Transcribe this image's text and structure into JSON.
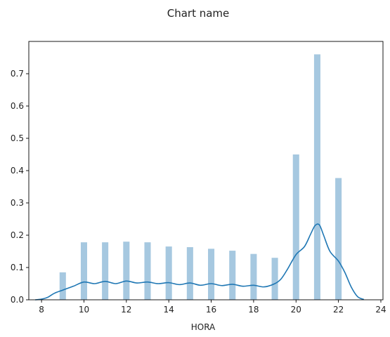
{
  "chart_data": {
    "type": "bar",
    "title": "Chart name",
    "xlabel": "HORA",
    "ylabel": "",
    "xlim": [
      7.4,
      24.1
    ],
    "ylim": [
      0,
      0.8
    ],
    "x_ticks": [
      8,
      10,
      12,
      14,
      16,
      18,
      20,
      22,
      24
    ],
    "y_ticks": [
      0.0,
      0.1,
      0.2,
      0.3,
      0.4,
      0.5,
      0.6,
      0.7
    ],
    "grid": false,
    "legend": "none",
    "bar_color": "#a6c8e0",
    "line_color": "#1f77b4",
    "bar_width": 0.3,
    "histogram": {
      "x": [
        9,
        10,
        11,
        12,
        13,
        14,
        15,
        16,
        17,
        18,
        19,
        20,
        21,
        22
      ],
      "values": [
        0.085,
        0.178,
        0.178,
        0.18,
        0.178,
        0.165,
        0.163,
        0.158,
        0.152,
        0.142,
        0.13,
        0.45,
        0.76,
        0.377
      ]
    },
    "kde": {
      "x": [
        7.7,
        8.0,
        8.3,
        8.6,
        9.0,
        9.5,
        10.0,
        10.5,
        11.0,
        11.5,
        12.0,
        12.5,
        13.0,
        13.5,
        14.0,
        14.5,
        15.0,
        15.5,
        16.0,
        16.5,
        17.0,
        17.5,
        18.0,
        18.5,
        19.0,
        19.3,
        19.6,
        20.0,
        20.4,
        20.7,
        20.9,
        21.1,
        21.3,
        21.6,
        22.0,
        22.3,
        22.6,
        22.9,
        23.2
      ],
      "values": [
        0.0,
        0.002,
        0.008,
        0.02,
        0.03,
        0.042,
        0.055,
        0.05,
        0.057,
        0.05,
        0.058,
        0.052,
        0.055,
        0.05,
        0.053,
        0.047,
        0.052,
        0.045,
        0.05,
        0.044,
        0.048,
        0.042,
        0.045,
        0.04,
        0.05,
        0.065,
        0.095,
        0.14,
        0.165,
        0.205,
        0.23,
        0.232,
        0.2,
        0.15,
        0.12,
        0.085,
        0.04,
        0.01,
        0.001
      ]
    }
  }
}
